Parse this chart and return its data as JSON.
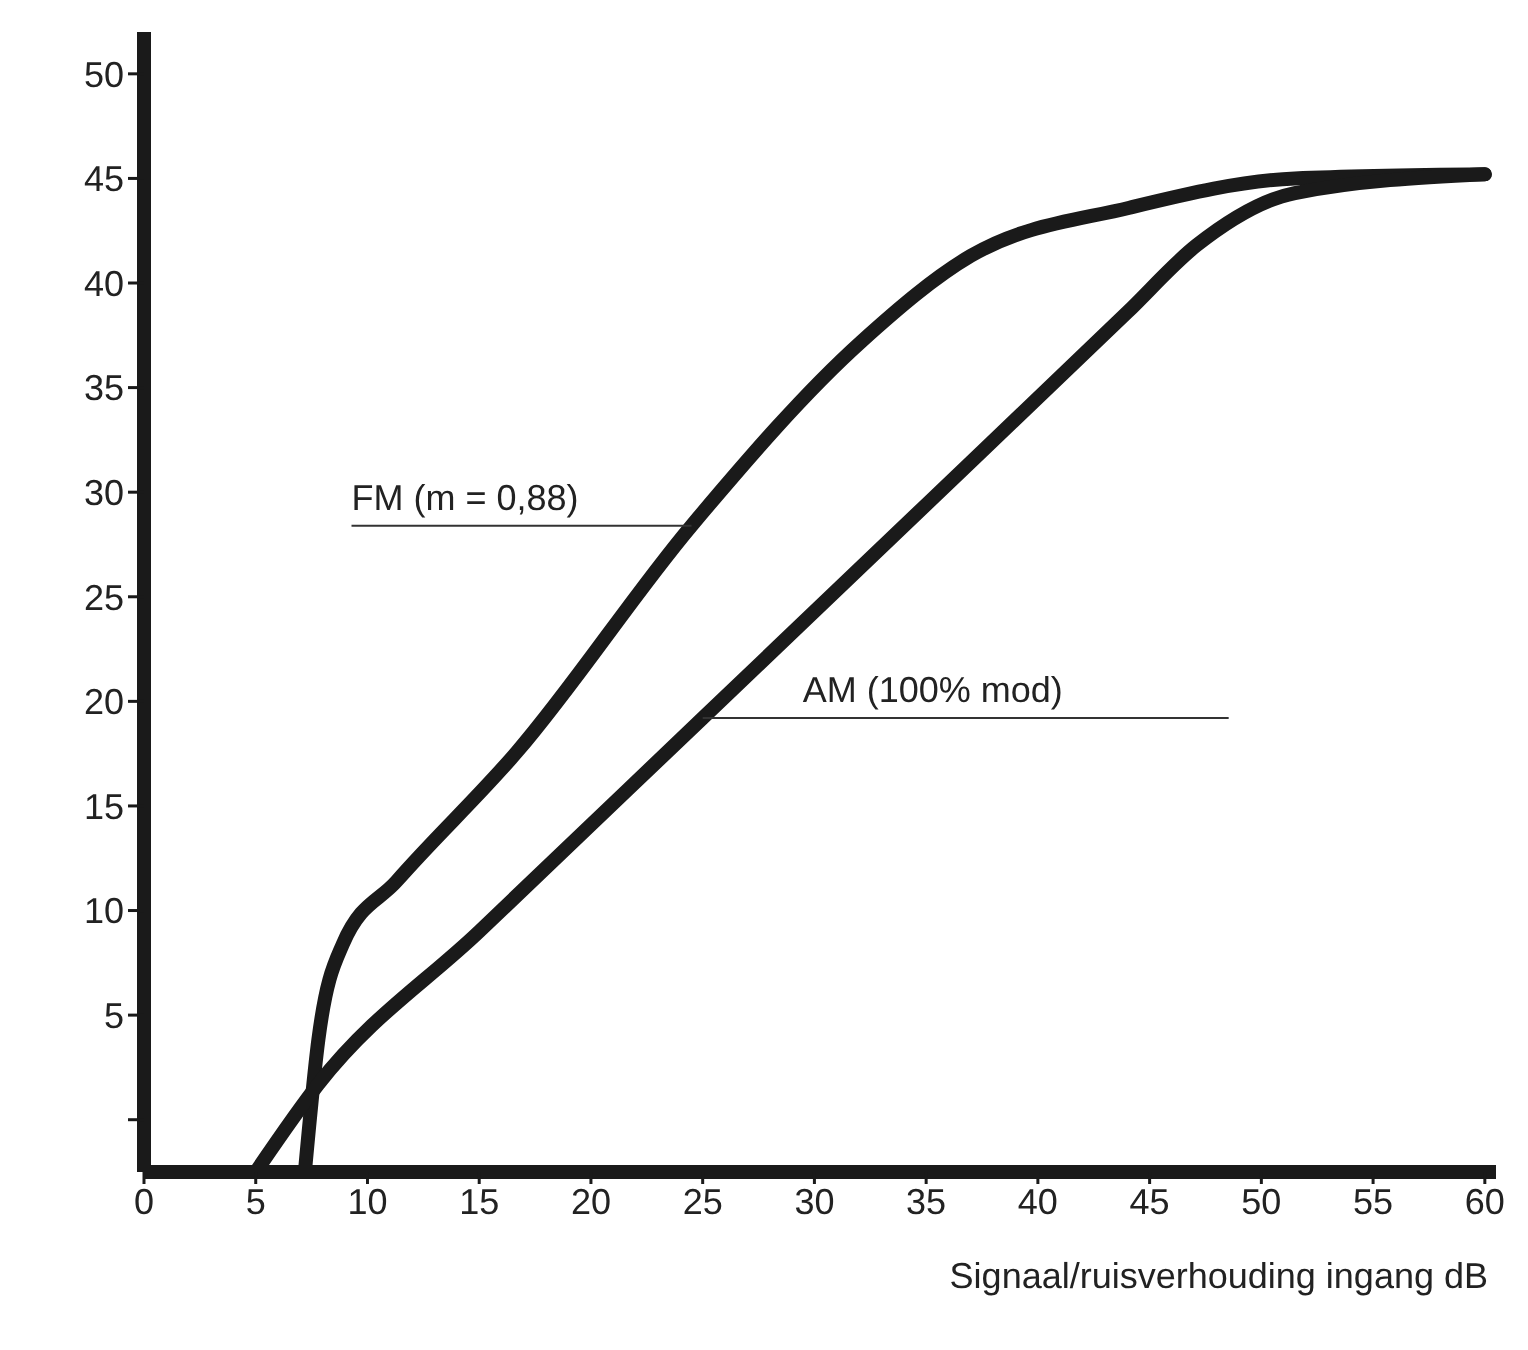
{
  "chart_data": {
    "type": "line",
    "xlabel": "Signaal/ruisverhouding ingang dB",
    "xlim": [
      0,
      60.5
    ],
    "xticks": [
      0,
      5,
      10,
      15,
      20,
      25,
      30,
      35,
      40,
      45,
      50,
      55,
      60
    ],
    "ylim": [
      -2.5,
      52
    ],
    "yticks": [
      {
        "value": 0,
        "label": null
      },
      5,
      10,
      15,
      20,
      25,
      30,
      35,
      40,
      45,
      50
    ],
    "grid": false,
    "legend": false,
    "marker": "none",
    "line_style": "solid",
    "series": [
      {
        "name": "FM (m = 0,88)",
        "color": "#1a1a1a",
        "x": [
          7.2,
          7.8,
          8.9,
          11.3,
          16.7,
          24.5,
          32.1,
          37,
          44.1,
          51.5,
          60
        ],
        "values": [
          -2.5,
          3.8,
          8.4,
          11.4,
          17.6,
          28.4,
          37.2,
          41.3,
          43.6,
          45,
          45.2
        ]
      },
      {
        "name": "AM (100% mod)",
        "color": "#1a1a1a",
        "x": [
          5,
          7.8,
          15,
          25,
          35,
          44,
          47.1,
          51.5,
          60
        ],
        "values": [
          -2.5,
          1.7,
          9,
          19.2,
          29.4,
          38.6,
          41.8,
          44.3,
          45.2
        ]
      }
    ]
  }
}
